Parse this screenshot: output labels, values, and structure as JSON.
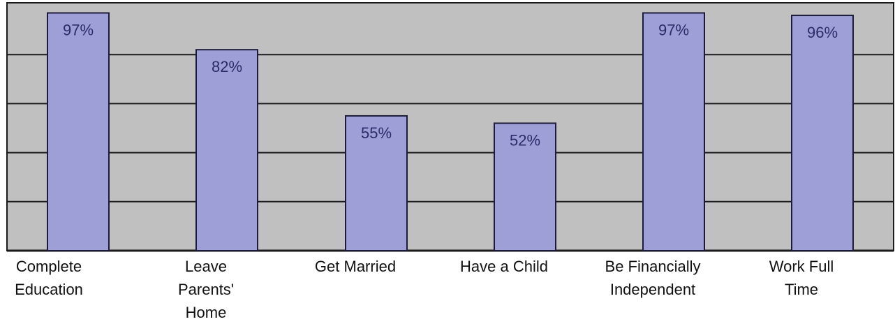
{
  "chart_data": {
    "type": "bar",
    "title": "",
    "xlabel": "",
    "ylabel": "",
    "ylim": [
      0,
      100
    ],
    "grid": true,
    "legend": "none",
    "categories": [
      [
        "Complete",
        "Education"
      ],
      [
        "Leave",
        "Parents'",
        "Home"
      ],
      [
        "Get Married"
      ],
      [
        "Have a Child"
      ],
      [
        "Be Financially",
        "Independent"
      ],
      [
        "Work Full",
        "Time"
      ]
    ],
    "values": [
      97,
      82,
      55,
      52,
      97,
      96
    ],
    "data_labels": [
      "97%",
      "82%",
      "55%",
      "52%",
      "97%",
      "96%"
    ],
    "colors": {
      "plot_background": "#c0c0c0",
      "bar_fill": "#9f9fd7",
      "bar_stroke": "#1c1c3a",
      "gridline": "#1a1a1a",
      "label_text": "#2b2b6a",
      "category_text": "#111111"
    }
  }
}
